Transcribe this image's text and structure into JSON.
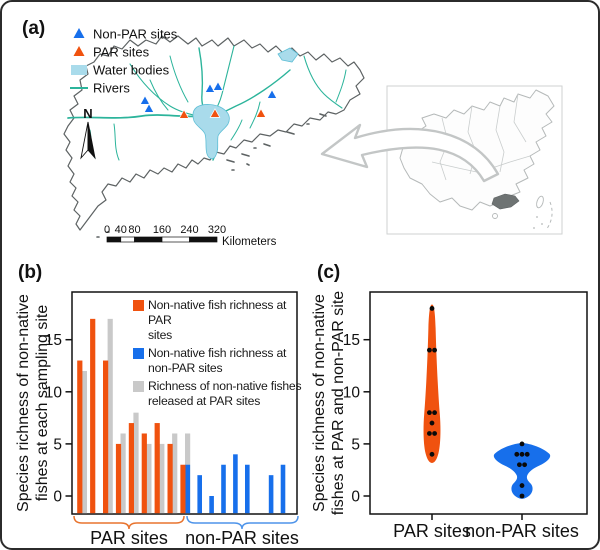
{
  "panels": {
    "a": "(a)",
    "b": "(b)",
    "c": "(c)"
  },
  "colors": {
    "par_orange": "#F0520F",
    "non_par_blue": "#176FEB",
    "released_gray": "#C9C9C9",
    "river_teal": "#2CB49B",
    "water_blue": "#A9DBEB",
    "map_outline": "#5D6263",
    "inset_gray": "#B5B9B9",
    "guangdong_fill": "#6E7373",
    "arrow_gray": "#C3C6C6",
    "point_black": "#0A0A0A"
  },
  "map": {
    "legend": [
      {
        "label": "Non-PAR sites",
        "symbol": "triangle",
        "color": "#176FEB"
      },
      {
        "label": "PAR sites",
        "symbol": "triangle",
        "color": "#F0520F"
      },
      {
        "label": "Water bodies",
        "symbol": "rect",
        "color": "#A9DBEB"
      },
      {
        "label": "Rivers",
        "symbol": "line",
        "color": "#2CB49B"
      }
    ],
    "north_label": "N",
    "scale_bar": {
      "tick_labels": [
        "0",
        "40",
        "80",
        "160",
        "240",
        "320"
      ],
      "unit_label": "Kilometers"
    },
    "sites": {
      "non_par": [
        [
          143,
          99
        ],
        [
          147,
          107
        ],
        [
          208,
          87
        ],
        [
          216,
          85
        ],
        [
          270,
          93
        ]
      ],
      "par": [
        [
          182,
          113
        ],
        [
          213,
          112
        ],
        [
          259,
          112
        ]
      ]
    }
  },
  "bar_chart": {
    "ylabel_lines": [
      "Species richness of non-native",
      "fishes at each sampling site"
    ],
    "yticks": [
      0,
      5,
      10,
      15
    ],
    "legend": [
      {
        "lines": [
          "Non-native fish richness at PAR",
          "sites"
        ],
        "color": "#F0520F"
      },
      {
        "lines": [
          "Non-native fish richness at",
          "non-PAR sites"
        ],
        "color": "#176FEB"
      },
      {
        "lines": [
          "Richness of non-native fishes",
          "released at PAR sites"
        ],
        "color": "#C9C9C9"
      }
    ],
    "group_labels": [
      "PAR sites",
      "non-PAR sites"
    ],
    "par_observed": [
      13,
      17,
      13,
      5,
      7,
      6,
      7,
      5,
      3
    ],
    "par_released": [
      12,
      null,
      17,
      6,
      8,
      5,
      5,
      6,
      6
    ],
    "non_par_observed": [
      3,
      2,
      0,
      3,
      4,
      3,
      null,
      2,
      3
    ]
  },
  "violin_chart": {
    "ylabel_lines": [
      "Species richness of non-native",
      "fishes at PAR and non-PAR site"
    ],
    "yticks": [
      0,
      5,
      10,
      15
    ],
    "categories": [
      "PAR sites",
      "non-PAR sites"
    ],
    "par_points": [
      18,
      14,
      14,
      8,
      8,
      7,
      6,
      6,
      4
    ],
    "non_par_points": [
      5,
      4,
      4,
      4,
      3,
      3,
      1,
      0
    ]
  },
  "chart_data": [
    {
      "type": "bar",
      "title": "",
      "ylabel": "Species richness of non-native fishes at each sampling site",
      "yticks": [
        0,
        5,
        10,
        15
      ],
      "ylim": [
        -1.7,
        19
      ],
      "groups": [
        "PAR sites",
        "non-PAR sites"
      ],
      "series": [
        {
          "name": "Non-native fish richness at PAR sites",
          "color": "#F0520F",
          "values": [
            13,
            17,
            13,
            5,
            7,
            6,
            7,
            5,
            3
          ]
        },
        {
          "name": "Richness of non-native fishes released at PAR sites",
          "color": "#C9C9C9",
          "values": [
            12,
            null,
            17,
            6,
            8,
            5,
            5,
            6,
            6
          ]
        },
        {
          "name": "Non-native fish richness at non-PAR sites",
          "color": "#176FEB",
          "values": [
            3,
            2,
            0,
            3,
            4,
            3,
            null,
            2,
            3
          ]
        }
      ],
      "legend_position": "upper right",
      "grid": false
    },
    {
      "type": "violin",
      "title": "",
      "ylabel": "Species richness of non-native fishes at PAR and non-PAR site",
      "yticks": [
        0,
        5,
        10,
        15
      ],
      "ylim": [
        -1.7,
        19
      ],
      "categories": [
        "PAR sites",
        "non-PAR sites"
      ],
      "series": [
        {
          "name": "PAR sites",
          "color": "#F0520F",
          "points": [
            18,
            14,
            14,
            8,
            8,
            7,
            6,
            6,
            4
          ]
        },
        {
          "name": "non-PAR sites",
          "color": "#176FEB",
          "points": [
            5,
            4,
            4,
            4,
            3,
            3,
            1,
            0
          ]
        }
      ],
      "grid": false
    }
  ]
}
